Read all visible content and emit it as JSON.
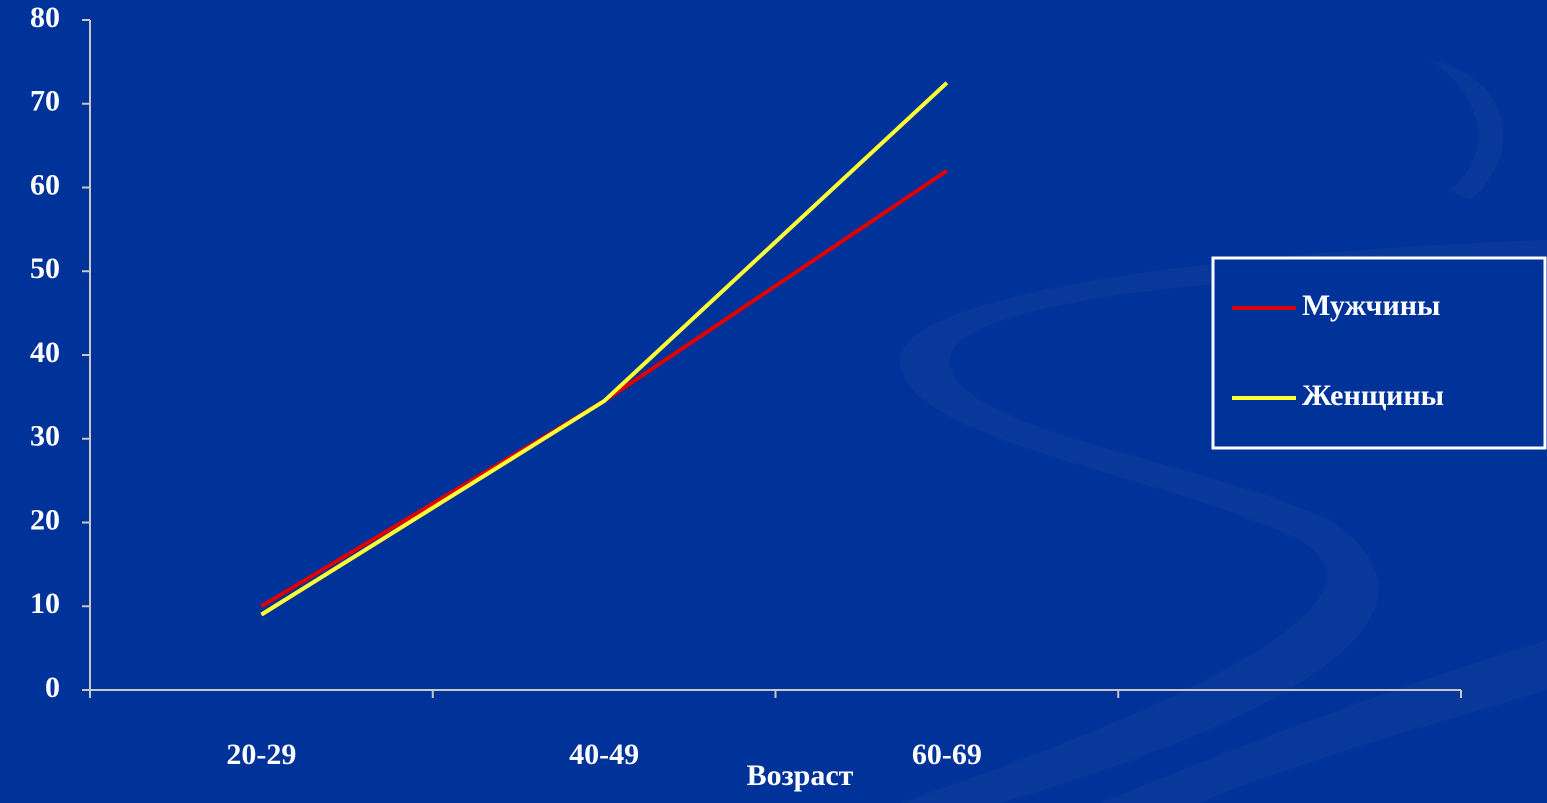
{
  "chart_data": {
    "type": "line",
    "x_label": "Возраст",
    "categories": [
      "20-29",
      "40-49",
      "60-69",
      null
    ],
    "series": [
      {
        "name": "Мужчины",
        "color": "#e00000",
        "values": [
          10,
          34.5,
          62,
          null
        ]
      },
      {
        "name": "Женщины",
        "color": "#ffff33",
        "values": [
          9,
          34.5,
          72.5,
          null
        ]
      }
    ],
    "ylim": [
      0,
      80
    ],
    "yticks": [
      0,
      10,
      20,
      30,
      40,
      50,
      60,
      70,
      80
    ],
    "grid": false,
    "legend": "right"
  }
}
